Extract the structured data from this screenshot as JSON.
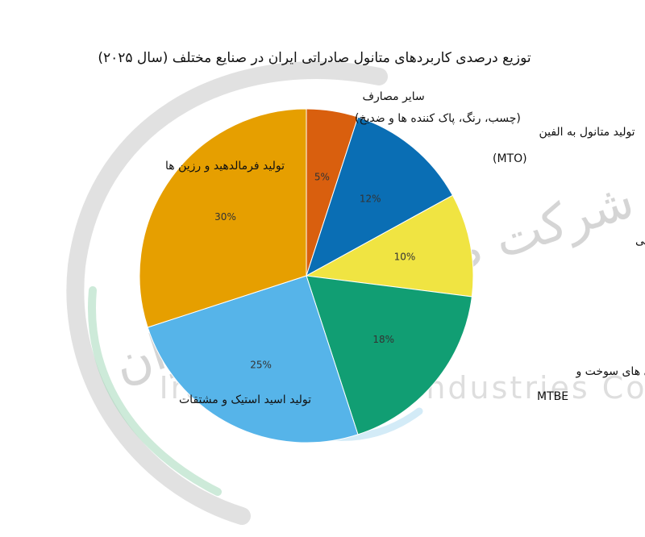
{
  "watermark": {
    "logo_text_ar": "شرکت صنایع متانول ایران",
    "company_en": "Iran Methanol Industries Co"
  },
  "chart_data": {
    "type": "pie",
    "title": "توزیع درصدی کاربردهای متانول صادراتی ایران در صنایع مختلف (سال ۲۰۲۵)",
    "start_angle_deg": 0,
    "direction": "clockwise",
    "slices": [
      {
        "label": "سایر مصارف (چسب، رنگ، پاک کننده ها و ضدیخ)",
        "value": 5,
        "display": "5%",
        "color": "#d95f0e"
      },
      {
        "label": "تولید متانول به الفین (MTO)",
        "value": 12,
        "display": "12%",
        "color": "#0a6eb4"
      },
      {
        "label": "صنایع دارویی و آزمایشگاهی",
        "value": 10,
        "display": "10%",
        "color": "#f0e442"
      },
      {
        "label": "افزودنی های سوخت و MTBE",
        "value": 18,
        "display": "18%",
        "color": "#119e73"
      },
      {
        "label": "تولید اسید استیک و مشتقات",
        "value": 25,
        "display": "25%",
        "color": "#56b4e9"
      },
      {
        "label": "تولید فرمالدهید و رزین ها",
        "value": 30,
        "display": "30%",
        "color": "#e69f00"
      }
    ]
  }
}
